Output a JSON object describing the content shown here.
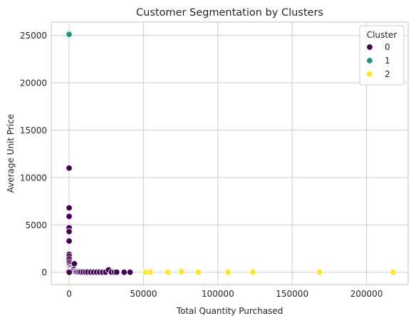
{
  "chart_data": {
    "type": "scatter",
    "title": "Customer Segmentation by Clusters",
    "xlabel": "Total Quantity Purchased",
    "ylabel": "Average Unit Price",
    "xlim": [
      -12000,
      228000
    ],
    "ylim": [
      -1300,
      26400
    ],
    "xticks": [
      0,
      50000,
      100000,
      150000,
      200000
    ],
    "yticks": [
      0,
      5000,
      10000,
      15000,
      20000,
      25000
    ],
    "grid": true,
    "legend": {
      "title": "Cluster",
      "placement": "top-right"
    },
    "colors": {
      "0": "#440154",
      "1": "#21918c",
      "2": "#fde725",
      "grid": "#cccccc",
      "spine": "#cccccc"
    },
    "series": [
      {
        "name": "0",
        "color": "#440154",
        "points": [
          [
            0,
            11000
          ],
          [
            0,
            6800
          ],
          [
            0,
            5900
          ],
          [
            0,
            4700
          ],
          [
            0,
            4300
          ],
          [
            0,
            3300
          ],
          [
            0,
            1900
          ],
          [
            0,
            1700
          ],
          [
            0,
            1400
          ],
          [
            0,
            1100
          ],
          [
            200,
            900
          ],
          [
            300,
            700
          ],
          [
            400,
            550
          ],
          [
            500,
            450
          ],
          [
            700,
            350
          ],
          [
            800,
            250
          ],
          [
            1000,
            200
          ],
          [
            1200,
            150
          ],
          [
            1500,
            100
          ],
          [
            1800,
            80
          ],
          [
            2200,
            60
          ],
          [
            3500,
            900
          ],
          [
            3000,
            300
          ],
          [
            2600,
            120
          ],
          [
            4000,
            100
          ],
          [
            4500,
            40
          ],
          [
            5200,
            60
          ],
          [
            6000,
            30
          ],
          [
            7000,
            40
          ],
          [
            8000,
            25
          ],
          [
            9500,
            30
          ],
          [
            11000,
            20
          ],
          [
            12500,
            25
          ],
          [
            14500,
            20
          ],
          [
            16500,
            15
          ],
          [
            18500,
            20
          ],
          [
            20500,
            15
          ],
          [
            22500,
            10
          ],
          [
            24500,
            20
          ],
          [
            26500,
            250
          ],
          [
            28500,
            15
          ],
          [
            30500,
            10
          ],
          [
            32000,
            20
          ],
          [
            37000,
            10
          ],
          [
            41000,
            10
          ],
          [
            -600,
            100
          ],
          [
            -400,
            40
          ],
          [
            100,
            0
          ]
        ]
      },
      {
        "name": "1",
        "color": "#21918c",
        "points": [
          [
            0,
            25100
          ]
        ]
      },
      {
        "name": "2",
        "color": "#fde725",
        "points": [
          [
            51500,
            10
          ],
          [
            54500,
            15
          ],
          [
            66500,
            10
          ],
          [
            75500,
            60
          ],
          [
            87000,
            10
          ],
          [
            107000,
            10
          ],
          [
            123500,
            15
          ],
          [
            168500,
            10
          ],
          [
            218000,
            10
          ]
        ]
      }
    ]
  }
}
